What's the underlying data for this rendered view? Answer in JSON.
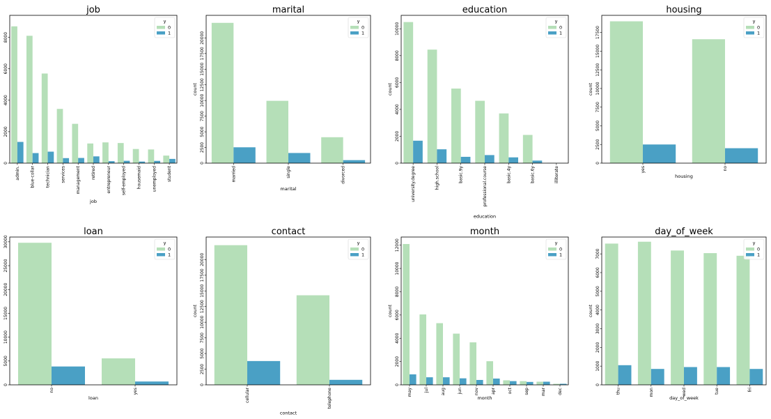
{
  "colors": {
    "series0": "#b5dfb8",
    "series1": "#4aa0c5"
  },
  "chart_data": [
    {
      "type": "bar",
      "title": "job",
      "xlabel": "job",
      "ylabel": "",
      "categories": [
        "admin.",
        "blue-collar",
        "technician",
        "services",
        "management",
        "retired",
        "entrepreneur",
        "self-employed",
        "housemaid",
        "unemployed",
        "student"
      ],
      "series": [
        {
          "name": "0",
          "values": [
            8700,
            8100,
            5700,
            3450,
            2500,
            1250,
            1320,
            1280,
            900,
            870,
            480
          ]
        },
        {
          "name": "1",
          "values": [
            1350,
            640,
            730,
            320,
            330,
            430,
            125,
            150,
            100,
            145,
            270
          ]
        }
      ],
      "ylim": [
        0,
        9400
      ],
      "yticks": [
        0,
        2000,
        4000,
        6000,
        8000
      ],
      "legend": {
        "title": "y",
        "position": "top-right"
      }
    },
    {
      "type": "bar",
      "title": "marital",
      "xlabel": "marital",
      "ylabel": "count",
      "categories": [
        "married",
        "single",
        "divorced"
      ],
      "series": [
        {
          "name": "0",
          "values": [
            22400,
            9950,
            4140
          ]
        },
        {
          "name": "1",
          "values": [
            2530,
            1620,
            480
          ]
        }
      ],
      "ylim": [
        0,
        23600
      ],
      "yticks": [
        0,
        2500,
        5000,
        7500,
        10000,
        12500,
        15000,
        17500,
        20000
      ],
      "legend": {
        "title": "y",
        "position": "top-right"
      }
    },
    {
      "type": "bar",
      "title": "education",
      "xlabel": "education",
      "ylabel": "count",
      "categories": [
        "university.degree",
        "high.school",
        "basic.9y",
        "professional.course",
        "basic.4y",
        "basic.6y",
        "illiterate"
      ],
      "series": [
        {
          "name": "0",
          "values": [
            10500,
            8450,
            5550,
            4640,
            3700,
            2100,
            15
          ]
        },
        {
          "name": "1",
          "values": [
            1670,
            1030,
            470,
            600,
            430,
            190,
            4
          ]
        }
      ],
      "ylim": [
        0,
        11000
      ],
      "yticks": [
        0,
        2000,
        4000,
        6000,
        8000,
        10000
      ],
      "legend": {
        "title": "y",
        "position": "top-right"
      }
    },
    {
      "type": "bar",
      "title": "housing",
      "xlabel": "housing",
      "ylabel": "count",
      "categories": [
        "yes",
        "no"
      ],
      "series": [
        {
          "name": "0",
          "values": [
            19000,
            16600
          ]
        },
        {
          "name": "1",
          "values": [
            2500,
            2000
          ]
        }
      ],
      "ylim": [
        0,
        19800
      ],
      "yticks": [
        0,
        2500,
        5000,
        7500,
        10000,
        12500,
        15000,
        17500
      ],
      "legend": {
        "title": "y",
        "position": "top-right"
      }
    },
    {
      "type": "bar",
      "title": "loan",
      "xlabel": "loan",
      "ylabel": "",
      "categories": [
        "no",
        "yes"
      ],
      "series": [
        {
          "name": "0",
          "values": [
            29800,
            5550
          ]
        },
        {
          "name": "1",
          "values": [
            3850,
            700
          ]
        }
      ],
      "ylim": [
        0,
        31000
      ],
      "yticks": [
        0,
        5000,
        10000,
        15000,
        20000,
        25000,
        30000
      ],
      "legend": {
        "title": "y",
        "position": "top-right"
      }
    },
    {
      "type": "bar",
      "title": "contact",
      "xlabel": "contact",
      "ylabel": "count",
      "categories": [
        "cellular",
        "telephone"
      ],
      "series": [
        {
          "name": "0",
          "values": [
            22300,
            14300
          ]
        },
        {
          "name": "1",
          "values": [
            3800,
            800
          ]
        }
      ],
      "ylim": [
        0,
        23600
      ],
      "yticks": [
        0,
        2500,
        5000,
        7500,
        10000,
        12500,
        15000,
        17500,
        20000
      ],
      "legend": {
        "title": "y",
        "position": "top-right"
      }
    },
    {
      "type": "bar",
      "title": "month",
      "xlabel": "month",
      "ylabel": "count",
      "categories": [
        "may",
        "jul",
        "aug",
        "jun",
        "nov",
        "apr",
        "oct",
        "sep",
        "mar",
        "dec"
      ],
      "series": [
        {
          "name": "0",
          "values": [
            12100,
            6050,
            5300,
            4400,
            3650,
            2030,
            390,
            320,
            270,
            90
          ]
        },
        {
          "name": "1",
          "values": [
            900,
            650,
            650,
            560,
            420,
            540,
            320,
            250,
            270,
            90
          ]
        }
      ],
      "ylim": [
        0,
        12700
      ],
      "yticks": [
        0,
        2000,
        4000,
        6000,
        8000,
        10000,
        12000
      ],
      "legend": {
        "title": "y",
        "position": "top-right"
      }
    },
    {
      "type": "bar",
      "title": "day_of_week",
      "xlabel": "day_of_week",
      "ylabel": "count",
      "categories": [
        "thu",
        "mon",
        "wed",
        "tue",
        "fri"
      ],
      "series": [
        {
          "name": "0",
          "values": [
            7550,
            7650,
            7180,
            7040,
            6900
          ]
        },
        {
          "name": "1",
          "values": [
            1050,
            850,
            950,
            950,
            850
          ]
        }
      ],
      "ylim": [
        0,
        7900
      ],
      "yticks": [
        0,
        1000,
        2000,
        3000,
        4000,
        5000,
        6000,
        7000
      ],
      "legend": {
        "title": "y",
        "position": "top-right"
      }
    }
  ]
}
